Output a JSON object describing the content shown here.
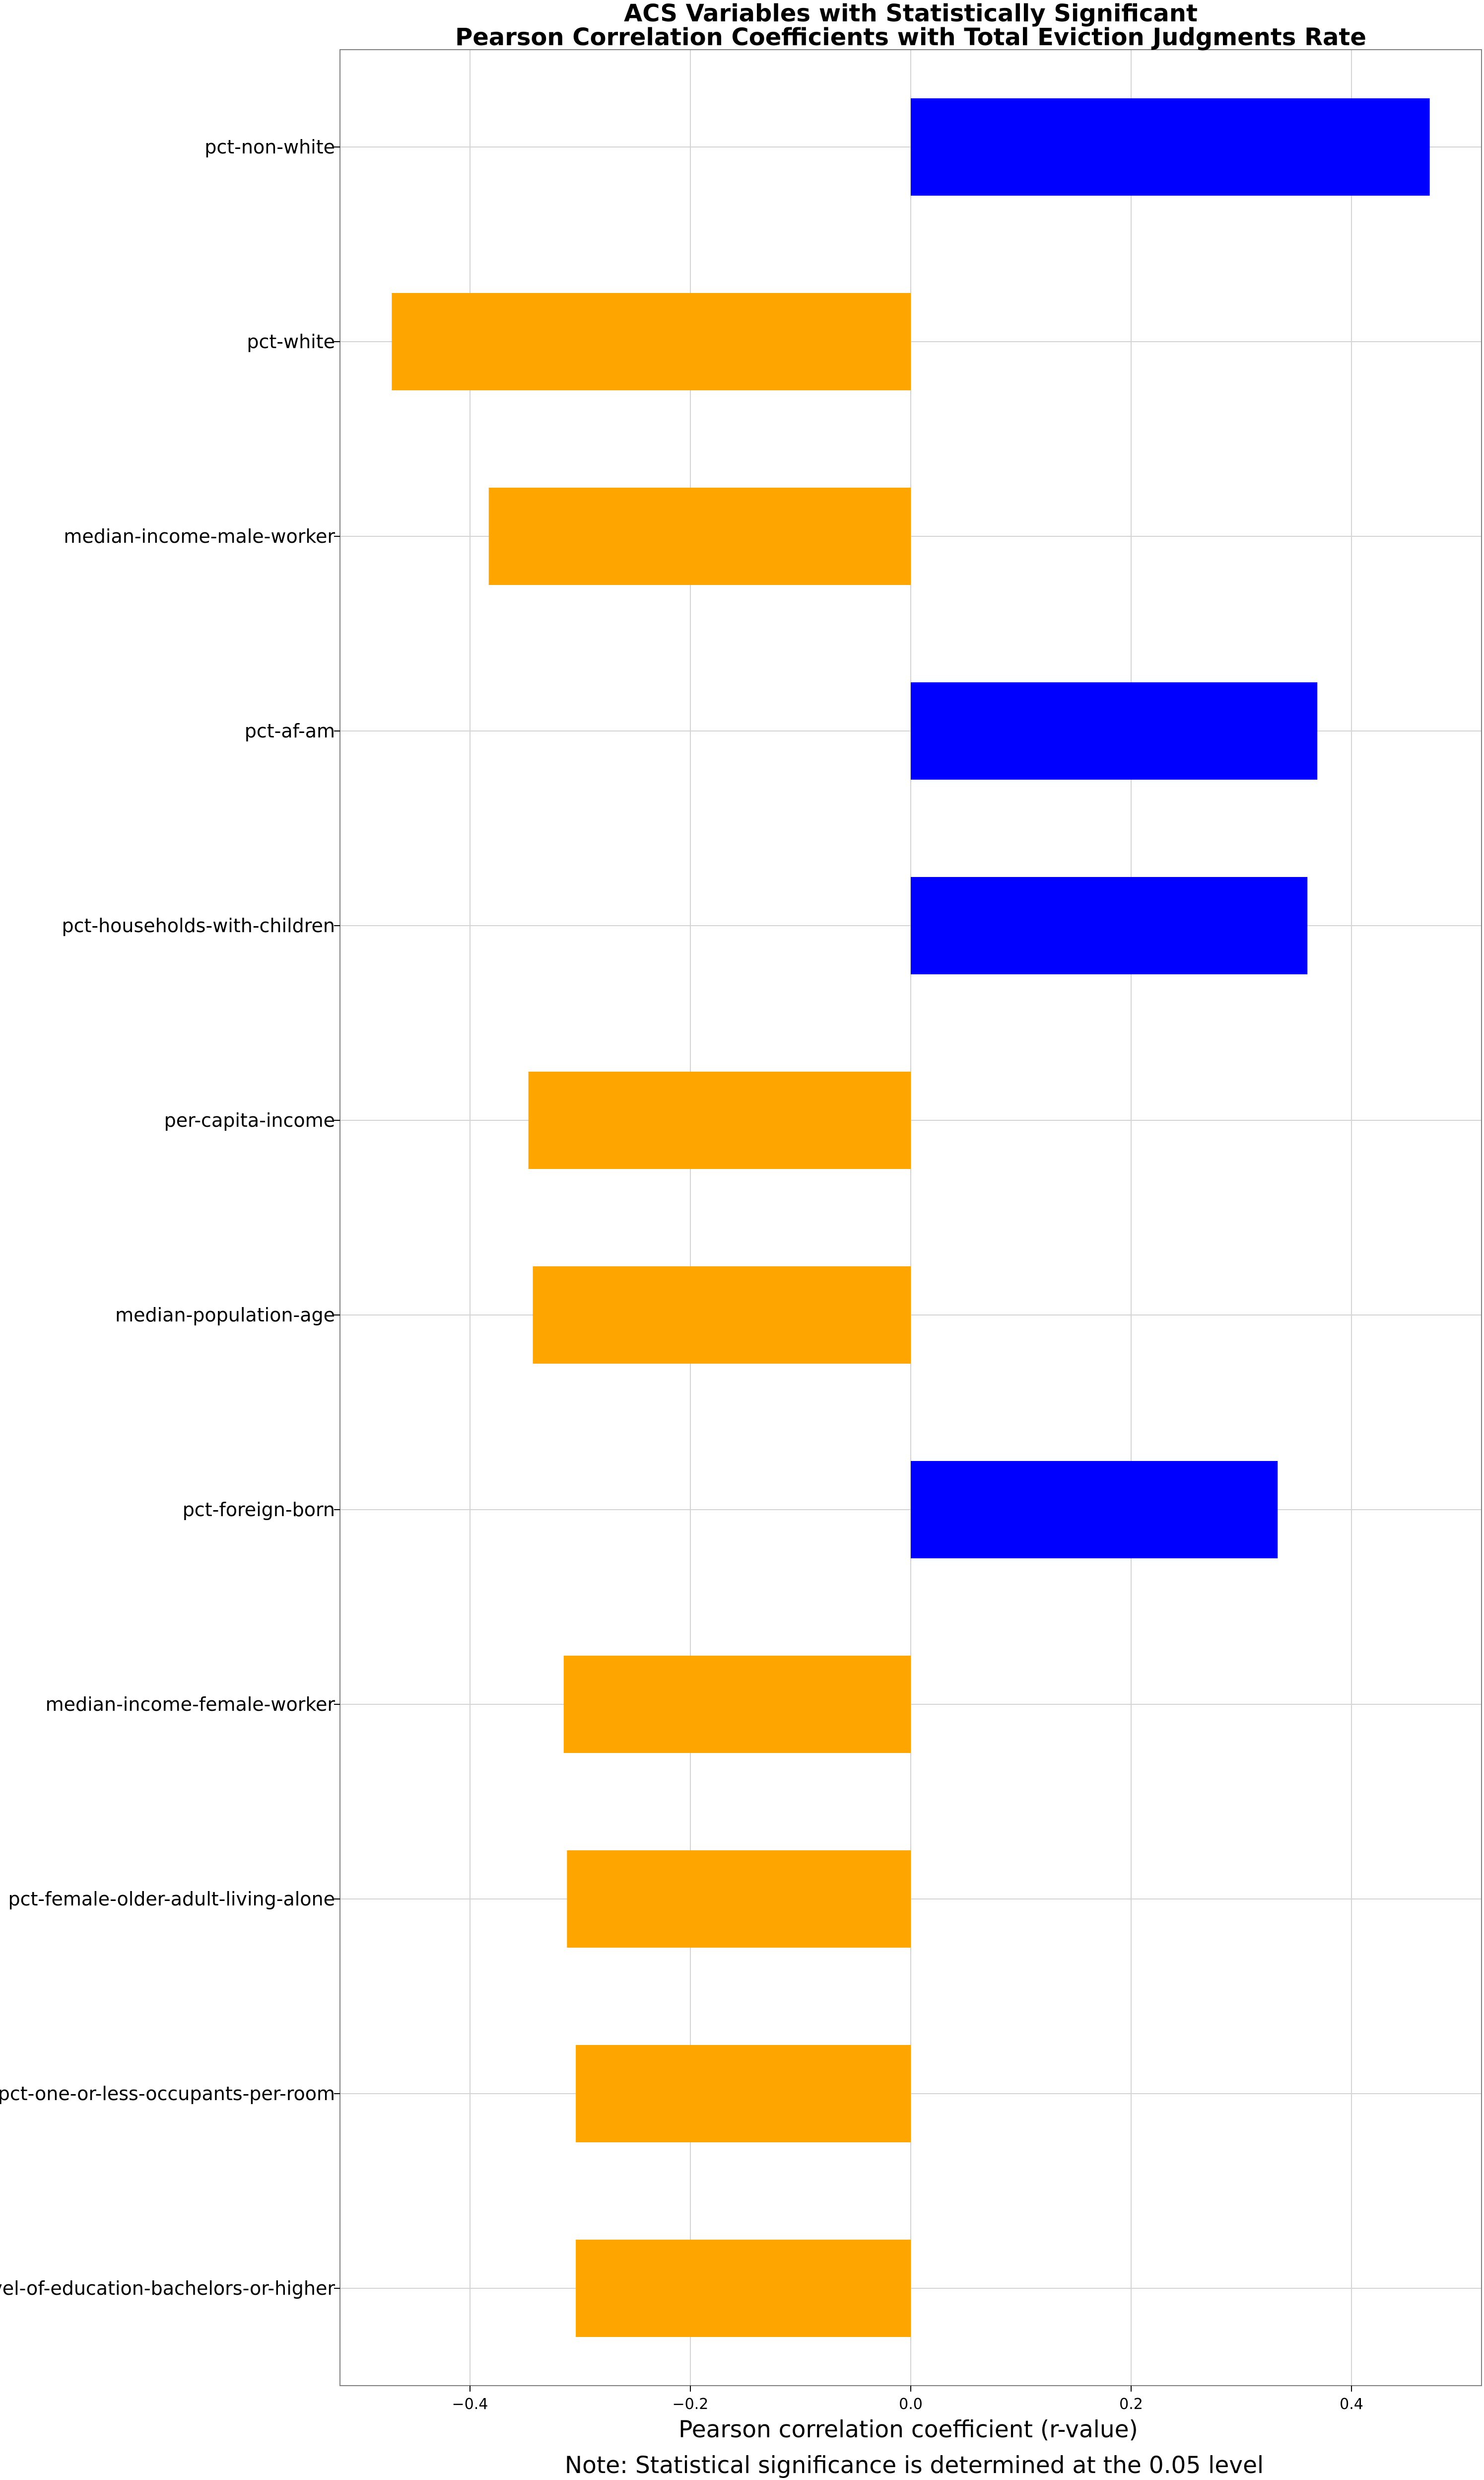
{
  "chart_data": {
    "type": "bar",
    "orientation": "horizontal",
    "title_lines": [
      "ACS Variables with Statistically Significant",
      "Pearson Correlation Coefficients with Total Eviction Judgments Rate"
    ],
    "xlabel": "Pearson correlation coefficient (r-value)",
    "note": "Note: Statistical significance is determined at the 0.05 level",
    "categories": [
      "pct-non-white",
      "pct-white",
      "median-income-male-worker",
      "pct-af-am",
      "pct-households-with-children",
      "per-capita-income",
      "median-population-age",
      "pct-foreign-born",
      "median-income-female-worker",
      "pct-female-older-adult-living-alone",
      "pct-one-or-less-occupants-per-room",
      "level-of-education-bachelors-or-higher"
    ],
    "values": [
      0.471,
      -0.471,
      -0.383,
      0.369,
      0.36,
      -0.347,
      -0.343,
      0.333,
      -0.315,
      -0.312,
      -0.304,
      -0.304
    ],
    "xlim": [
      -0.518,
      0.518
    ],
    "xticks": [
      -0.4,
      -0.2,
      0.0,
      0.2,
      0.4
    ],
    "xtick_labels": [
      "−0.4",
      "−0.2",
      "0.0",
      "0.2",
      "0.4"
    ],
    "grid": true,
    "colors": {
      "positive": "#0000ff",
      "negative": "#ffa500",
      "grid": "#d3d3d3",
      "axes": "#808080"
    }
  }
}
